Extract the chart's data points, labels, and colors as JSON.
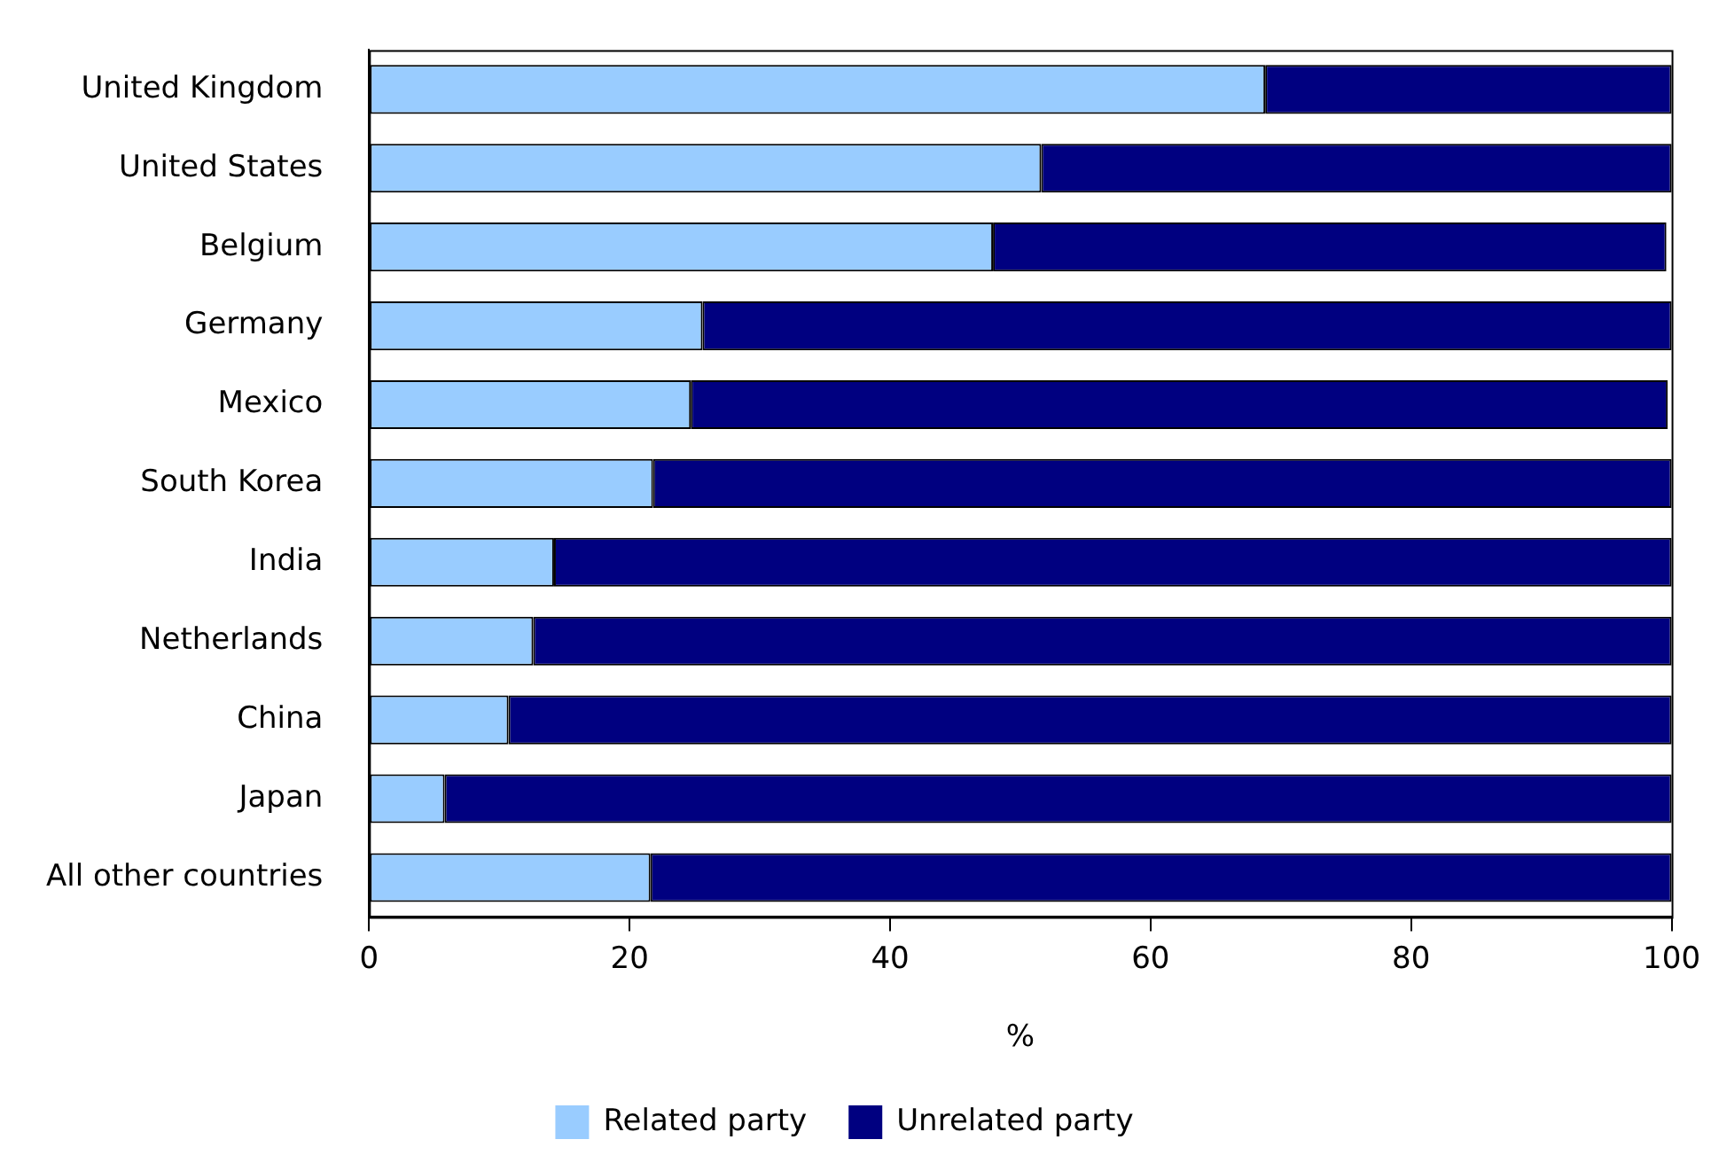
{
  "chart_data": {
    "type": "bar",
    "orientation": "horizontal",
    "stacked": true,
    "xlabel": "%",
    "categories": [
      "United Kingdom",
      "United States",
      "Belgium",
      "Germany",
      "Mexico",
      "South Korea",
      "India",
      "Netherlands",
      "China",
      "Japan",
      "All other countries"
    ],
    "series": [
      {
        "name": "Related party",
        "color": "#99ccff",
        "values": [
          68.8,
          51.6,
          47.9,
          25.6,
          24.7,
          21.8,
          14.2,
          12.6,
          10.7,
          5.8,
          21.6
        ]
      },
      {
        "name": "Unrelated party",
        "color": "#000080",
        "values": [
          31.2,
          48.4,
          51.7,
          74.4,
          75.0,
          78.2,
          85.8,
          87.4,
          89.3,
          94.2,
          78.4
        ]
      }
    ],
    "xlim": [
      0,
      100
    ],
    "xticks": [
      0,
      20,
      40,
      60,
      80,
      100
    ],
    "grid": false,
    "legend": "bottom"
  }
}
